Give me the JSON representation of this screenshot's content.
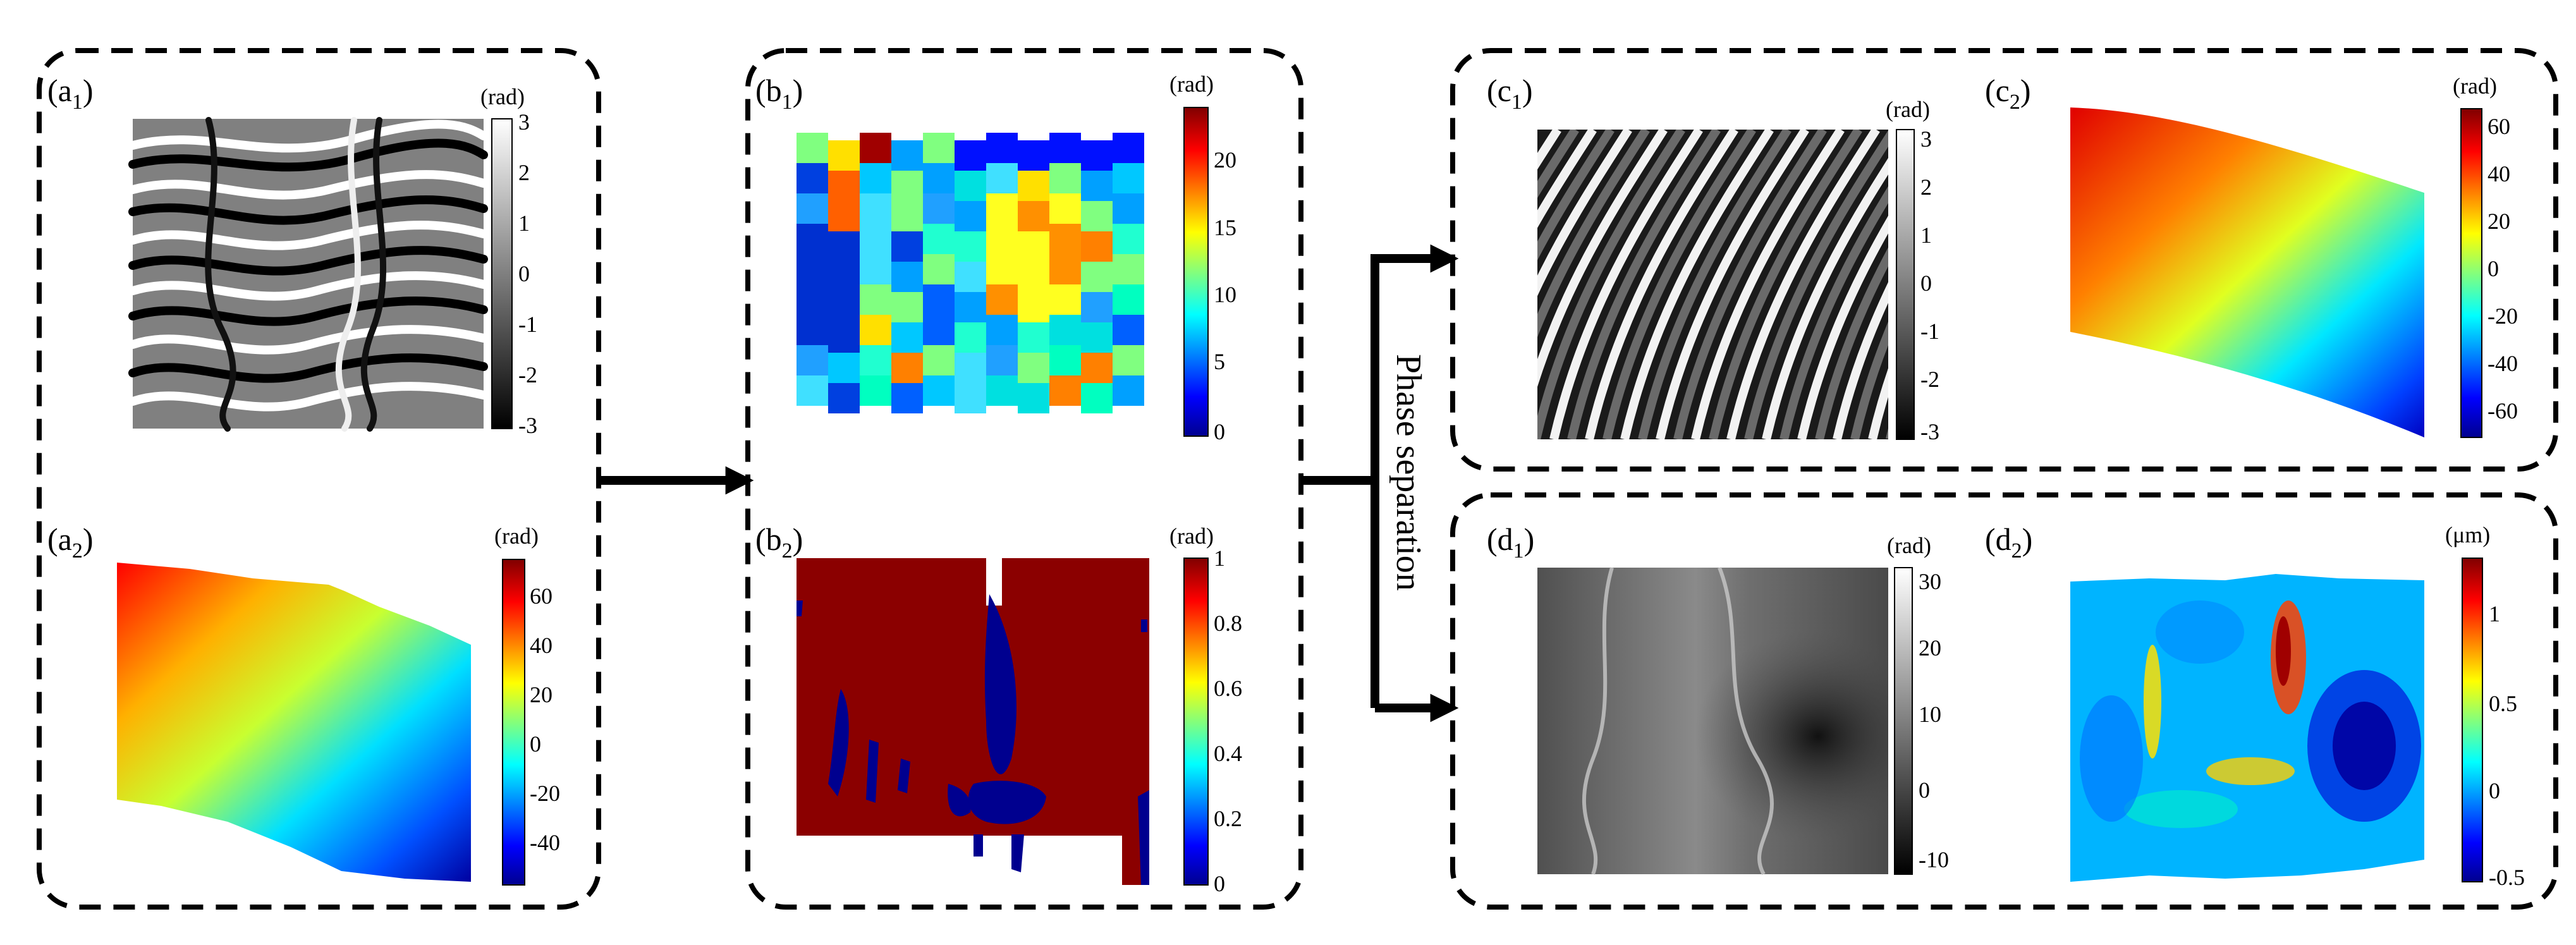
{
  "panels": {
    "a1": {
      "letter": "(a",
      "sub": "1",
      "unit": "(rad)",
      "ticks": [
        "3",
        "2",
        "1",
        "0",
        "-1",
        "-2",
        "-3"
      ]
    },
    "a2": {
      "letter": "(a",
      "sub": "2",
      "unit": "(rad)",
      "ticks": [
        "60",
        "40",
        "20",
        "0",
        "-20",
        "-40"
      ]
    },
    "b1": {
      "letter": "(b",
      "sub": "1",
      "unit": "(rad)",
      "ticks": [
        "20",
        "15",
        "10",
        "5",
        "0"
      ]
    },
    "b2": {
      "letter": "(b",
      "sub": "2",
      "unit": "(rad)",
      "ticks": [
        "1",
        "0.8",
        "0.6",
        "0.4",
        "0.2",
        "0"
      ]
    },
    "c1": {
      "letter": "(c",
      "sub": "1",
      "unit": "(rad)",
      "ticks": [
        "3",
        "2",
        "1",
        "0",
        "-1",
        "-2",
        "-3"
      ]
    },
    "c2": {
      "letter": "(c",
      "sub": "2",
      "unit": "(rad)",
      "ticks": [
        "60",
        "40",
        "20",
        "0",
        "-20",
        "-40",
        "-60"
      ]
    },
    "d1": {
      "letter": "(d",
      "sub": "1",
      "unit": "(rad)",
      "ticks": [
        "30",
        "20",
        "10",
        "0",
        "-10"
      ]
    },
    "d2": {
      "letter": "(d",
      "sub": "2",
      "unit": "(μm)",
      "ticks": [
        "1",
        "0.5",
        "0",
        "-0.5"
      ]
    }
  },
  "process_label": "Phase separation",
  "colors": {
    "jet": [
      "#00008f",
      "#0000ff",
      "#00ffff",
      "#ffff00",
      "#ff0000",
      "#800000"
    ],
    "frame": "#000000"
  }
}
